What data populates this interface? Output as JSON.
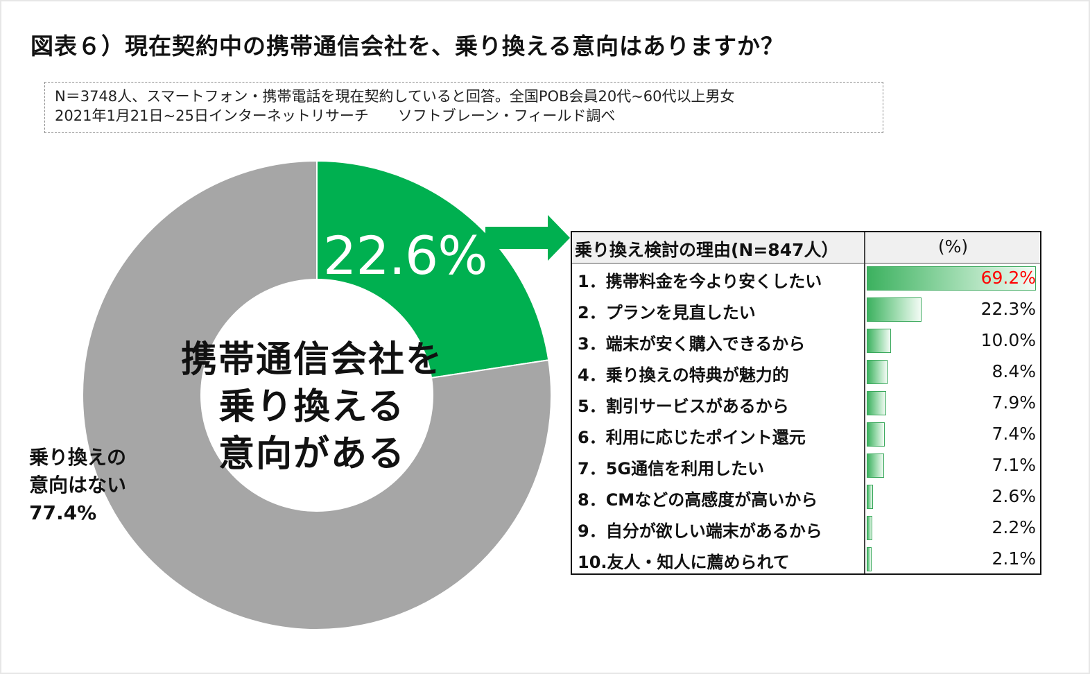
{
  "title": "図表６）現在契約中の携帯通信会社を、乗り換える意向はありますか？",
  "note": {
    "line1": "N＝3748人、スマートフォン・携帯電話を現在契約していると回答。全国POB会員20代~60代以上男女",
    "line2": "2021年1月21日~25日インターネットリサーチ　　ソフトブレーン・フィールド調べ"
  },
  "colors": {
    "green": "#00b050",
    "gray": "#a6a6a6",
    "red": "#ff0000"
  },
  "chart_data": [
    {
      "type": "pie",
      "slices": [
        {
          "label": "携帯通信会社を乗り換える意向がある",
          "value": 22.6,
          "display": "22.6%"
        },
        {
          "label": "乗り換えの意向はない",
          "value": 77.4,
          "display": "77.4%"
        }
      ],
      "center_lines": [
        "携帯通信会社を",
        "乗り換える",
        "意向がある"
      ],
      "gray_label_lines": [
        "乗り換えの",
        "意向はない",
        "77.4%"
      ]
    },
    {
      "type": "bar",
      "orientation": "horizontal",
      "header_label": "乗り換え検討の理由(N=847人）",
      "header_unit": "(%)",
      "categories": [
        "1．携帯料金を今より安くしたい",
        "2．プランを見直したい",
        "3．端末が安く購入できるから",
        "4．乗り換えの特典が魅力的",
        "5．割引サービスがあるから",
        "6．利用に応じたポイント還元",
        "7．5G通信を利用したい",
        "8．CMなどの高感度が高いから",
        "9．自分が欲しい端末があるから",
        "10.友人・知人に薦められて"
      ],
      "values": [
        69.2,
        22.3,
        10.0,
        8.4,
        7.9,
        7.4,
        7.1,
        2.6,
        2.2,
        2.1
      ],
      "value_labels": [
        "69.2%",
        "22.3%",
        "10.0%",
        "8.4%",
        "7.9%",
        "7.4%",
        "7.1%",
        "2.6%",
        "2.2%",
        "2.1%"
      ],
      "xlim": [
        0,
        69.2
      ]
    }
  ]
}
